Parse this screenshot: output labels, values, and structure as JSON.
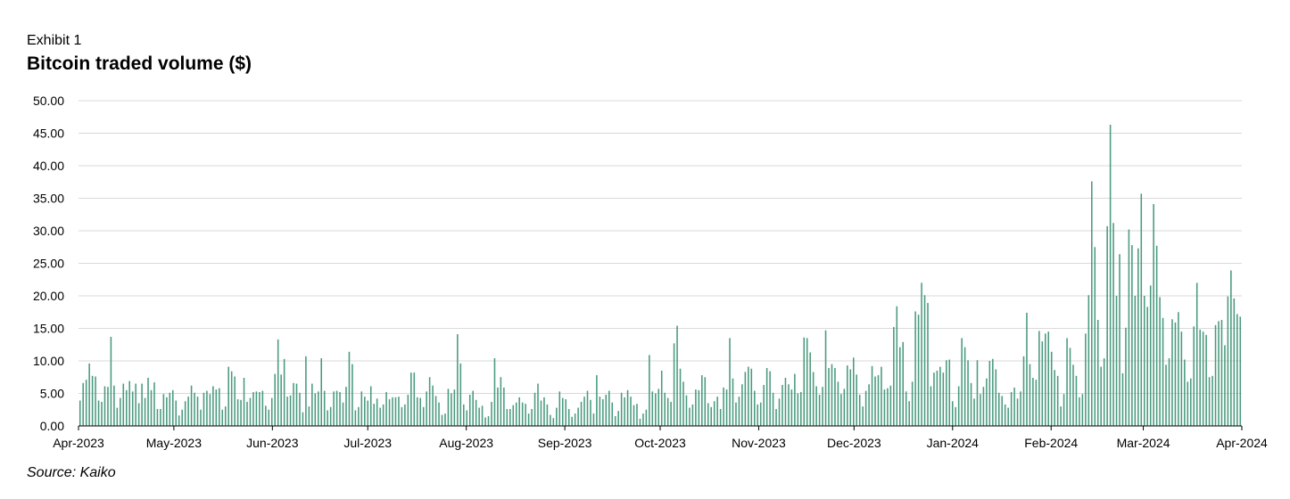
{
  "header": {
    "exhibit": "Exhibit 1"
  },
  "source": "Source: Kaiko",
  "colors": {
    "bar": "#4a9a7e",
    "grid": "#d9d9d9",
    "axis": "#000000"
  },
  "chart_data": {
    "type": "bar",
    "title": "Bitcoin traded volume ($)",
    "xlabel": "",
    "ylabel": "",
    "ylim": [
      0,
      50
    ],
    "grid": true,
    "yticks": [
      "0.00",
      "5.00",
      "10.00",
      "15.00",
      "20.00",
      "25.00",
      "30.00",
      "35.00",
      "40.00",
      "45.00",
      "50.00"
    ],
    "xticks": [
      "Apr-2023",
      "May-2023",
      "Jun-2023",
      "Jul-2023",
      "Aug-2023",
      "Sep-2023",
      "Oct-2023",
      "Nov-2023",
      "Dec-2023",
      "Jan-2024",
      "Feb-2024",
      "Mar-2024",
      "Apr-2024"
    ],
    "x_start": "2023-04-01",
    "x_end": "2024-04-01",
    "values": [
      3.9,
      6.6,
      7.1,
      9.6,
      7.7,
      7.6,
      3.9,
      3.7,
      6.1,
      6.0,
      13.7,
      6.2,
      2.8,
      4.3,
      6.5,
      5.5,
      6.9,
      5.3,
      6.5,
      3.5,
      6.5,
      4.3,
      7.4,
      5.5,
      6.7,
      2.6,
      2.6,
      4.9,
      4.4,
      5.1,
      5.5,
      3.9,
      1.6,
      2.5,
      3.8,
      4.5,
      6.2,
      5.1,
      4.5,
      2.5,
      5.1,
      5.4,
      4.9,
      6.1,
      5.6,
      5.8,
      2.5,
      3.0,
      9.1,
      8.4,
      7.6,
      4.1,
      4.0,
      7.4,
      3.7,
      4.3,
      5.2,
      5.3,
      5.2,
      5.4,
      3.1,
      2.5,
      4.3,
      8.0,
      13.3,
      7.9,
      10.3,
      4.5,
      4.7,
      6.6,
      6.5,
      5.1,
      2.1,
      10.7,
      3.0,
      6.5,
      5.0,
      5.3,
      10.4,
      5.4,
      2.4,
      2.9,
      5.3,
      5.4,
      5.2,
      3.6,
      6.0,
      11.4,
      9.5,
      2.4,
      2.9,
      5.3,
      4.5,
      3.9,
      6.1,
      3.4,
      4.2,
      2.8,
      3.3,
      5.2,
      4.1,
      4.4,
      4.4,
      4.5,
      2.9,
      3.3,
      4.8,
      8.2,
      8.2,
      4.4,
      4.3,
      2.9,
      5.3,
      7.5,
      6.2,
      4.6,
      3.6,
      1.7,
      1.9,
      5.7,
      5.0,
      5.6,
      14.1,
      9.6,
      3.3,
      2.4,
      4.8,
      5.4,
      4.0,
      2.8,
      3.1,
      1.3,
      1.5,
      3.7,
      10.4,
      5.9,
      7.5,
      5.9,
      2.6,
      2.6,
      3.2,
      3.6,
      4.4,
      3.6,
      3.4,
      1.9,
      2.6,
      5.1,
      6.5,
      3.9,
      4.4,
      3.3,
      1.7,
      1.2,
      2.8,
      5.3,
      4.3,
      4.1,
      2.6,
      1.4,
      1.9,
      2.8,
      3.7,
      4.5,
      5.4,
      4.0,
      1.9,
      7.8,
      4.5,
      4.1,
      4.8,
      5.4,
      3.6,
      1.5,
      2.3,
      5.1,
      4.4,
      5.5,
      4.5,
      3.2,
      3.4,
      1.1,
      1.9,
      2.5,
      10.9,
      5.3,
      5.0,
      5.7,
      8.5,
      5.1,
      4.3,
      3.7,
      12.7,
      15.4,
      8.8,
      6.8,
      4.7,
      2.8,
      3.3,
      5.6,
      5.5,
      7.8,
      7.5,
      3.5,
      2.9,
      3.8,
      4.5,
      2.6,
      5.9,
      5.6,
      13.5,
      7.3,
      3.6,
      4.5,
      6.4,
      8.3,
      9.1,
      8.8,
      5.4,
      3.3,
      3.6,
      6.3,
      8.9,
      8.4,
      5.1,
      2.6,
      4.2,
      6.3,
      7.4,
      6.4,
      5.6,
      8.0,
      5.0,
      5.2,
      13.6,
      13.5,
      11.3,
      8.3,
      6.1,
      4.8,
      6.0,
      14.7,
      8.9,
      9.5,
      8.9,
      6.8,
      4.9,
      5.7,
      9.3,
      8.7,
      10.5,
      7.9,
      4.8,
      3.0,
      5.4,
      6.4,
      9.2,
      7.6,
      7.8,
      9.1,
      5.6,
      5.8,
      6.2,
      15.2,
      18.4,
      12.1,
      12.9,
      5.3,
      3.8,
      6.8,
      17.6,
      17.1,
      22.0,
      20.1,
      18.9,
      6.1,
      8.2,
      8.5,
      9.1,
      8.2,
      10.1,
      10.2,
      3.8,
      2.9,
      6.1,
      13.5,
      12.1,
      10.1,
      6.6,
      4.2,
      10.1,
      4.9,
      6.0,
      7.3,
      10.0,
      10.3,
      8.7,
      5.1,
      4.6,
      3.3,
      2.8,
      5.2,
      5.9,
      4.2,
      5.3,
      10.7,
      17.4,
      9.5,
      7.4,
      7.1,
      14.6,
      13.0,
      14.2,
      14.5,
      11.4,
      8.6,
      7.7,
      3.0,
      4.9,
      13.5,
      12.0,
      9.4,
      7.7,
      4.4,
      4.9,
      14.2,
      20.1,
      37.6,
      27.5,
      16.3,
      9.1,
      10.4,
      30.7,
      46.3,
      31.2,
      20.0,
      26.4,
      8.1,
      15.1,
      30.2,
      27.8,
      20.0,
      27.3,
      35.7,
      20.0,
      18.3,
      21.6,
      34.1,
      27.7,
      19.8,
      16.6,
      9.4,
      10.4,
      16.4,
      15.9,
      17.5,
      14.5,
      10.2,
      6.8,
      7.3,
      15.3,
      22.0,
      14.8,
      14.5,
      14.0,
      7.5,
      7.7,
      15.5,
      16.1,
      16.3,
      12.4,
      19.9,
      23.9,
      19.6,
      17.2,
      16.8
    ]
  }
}
